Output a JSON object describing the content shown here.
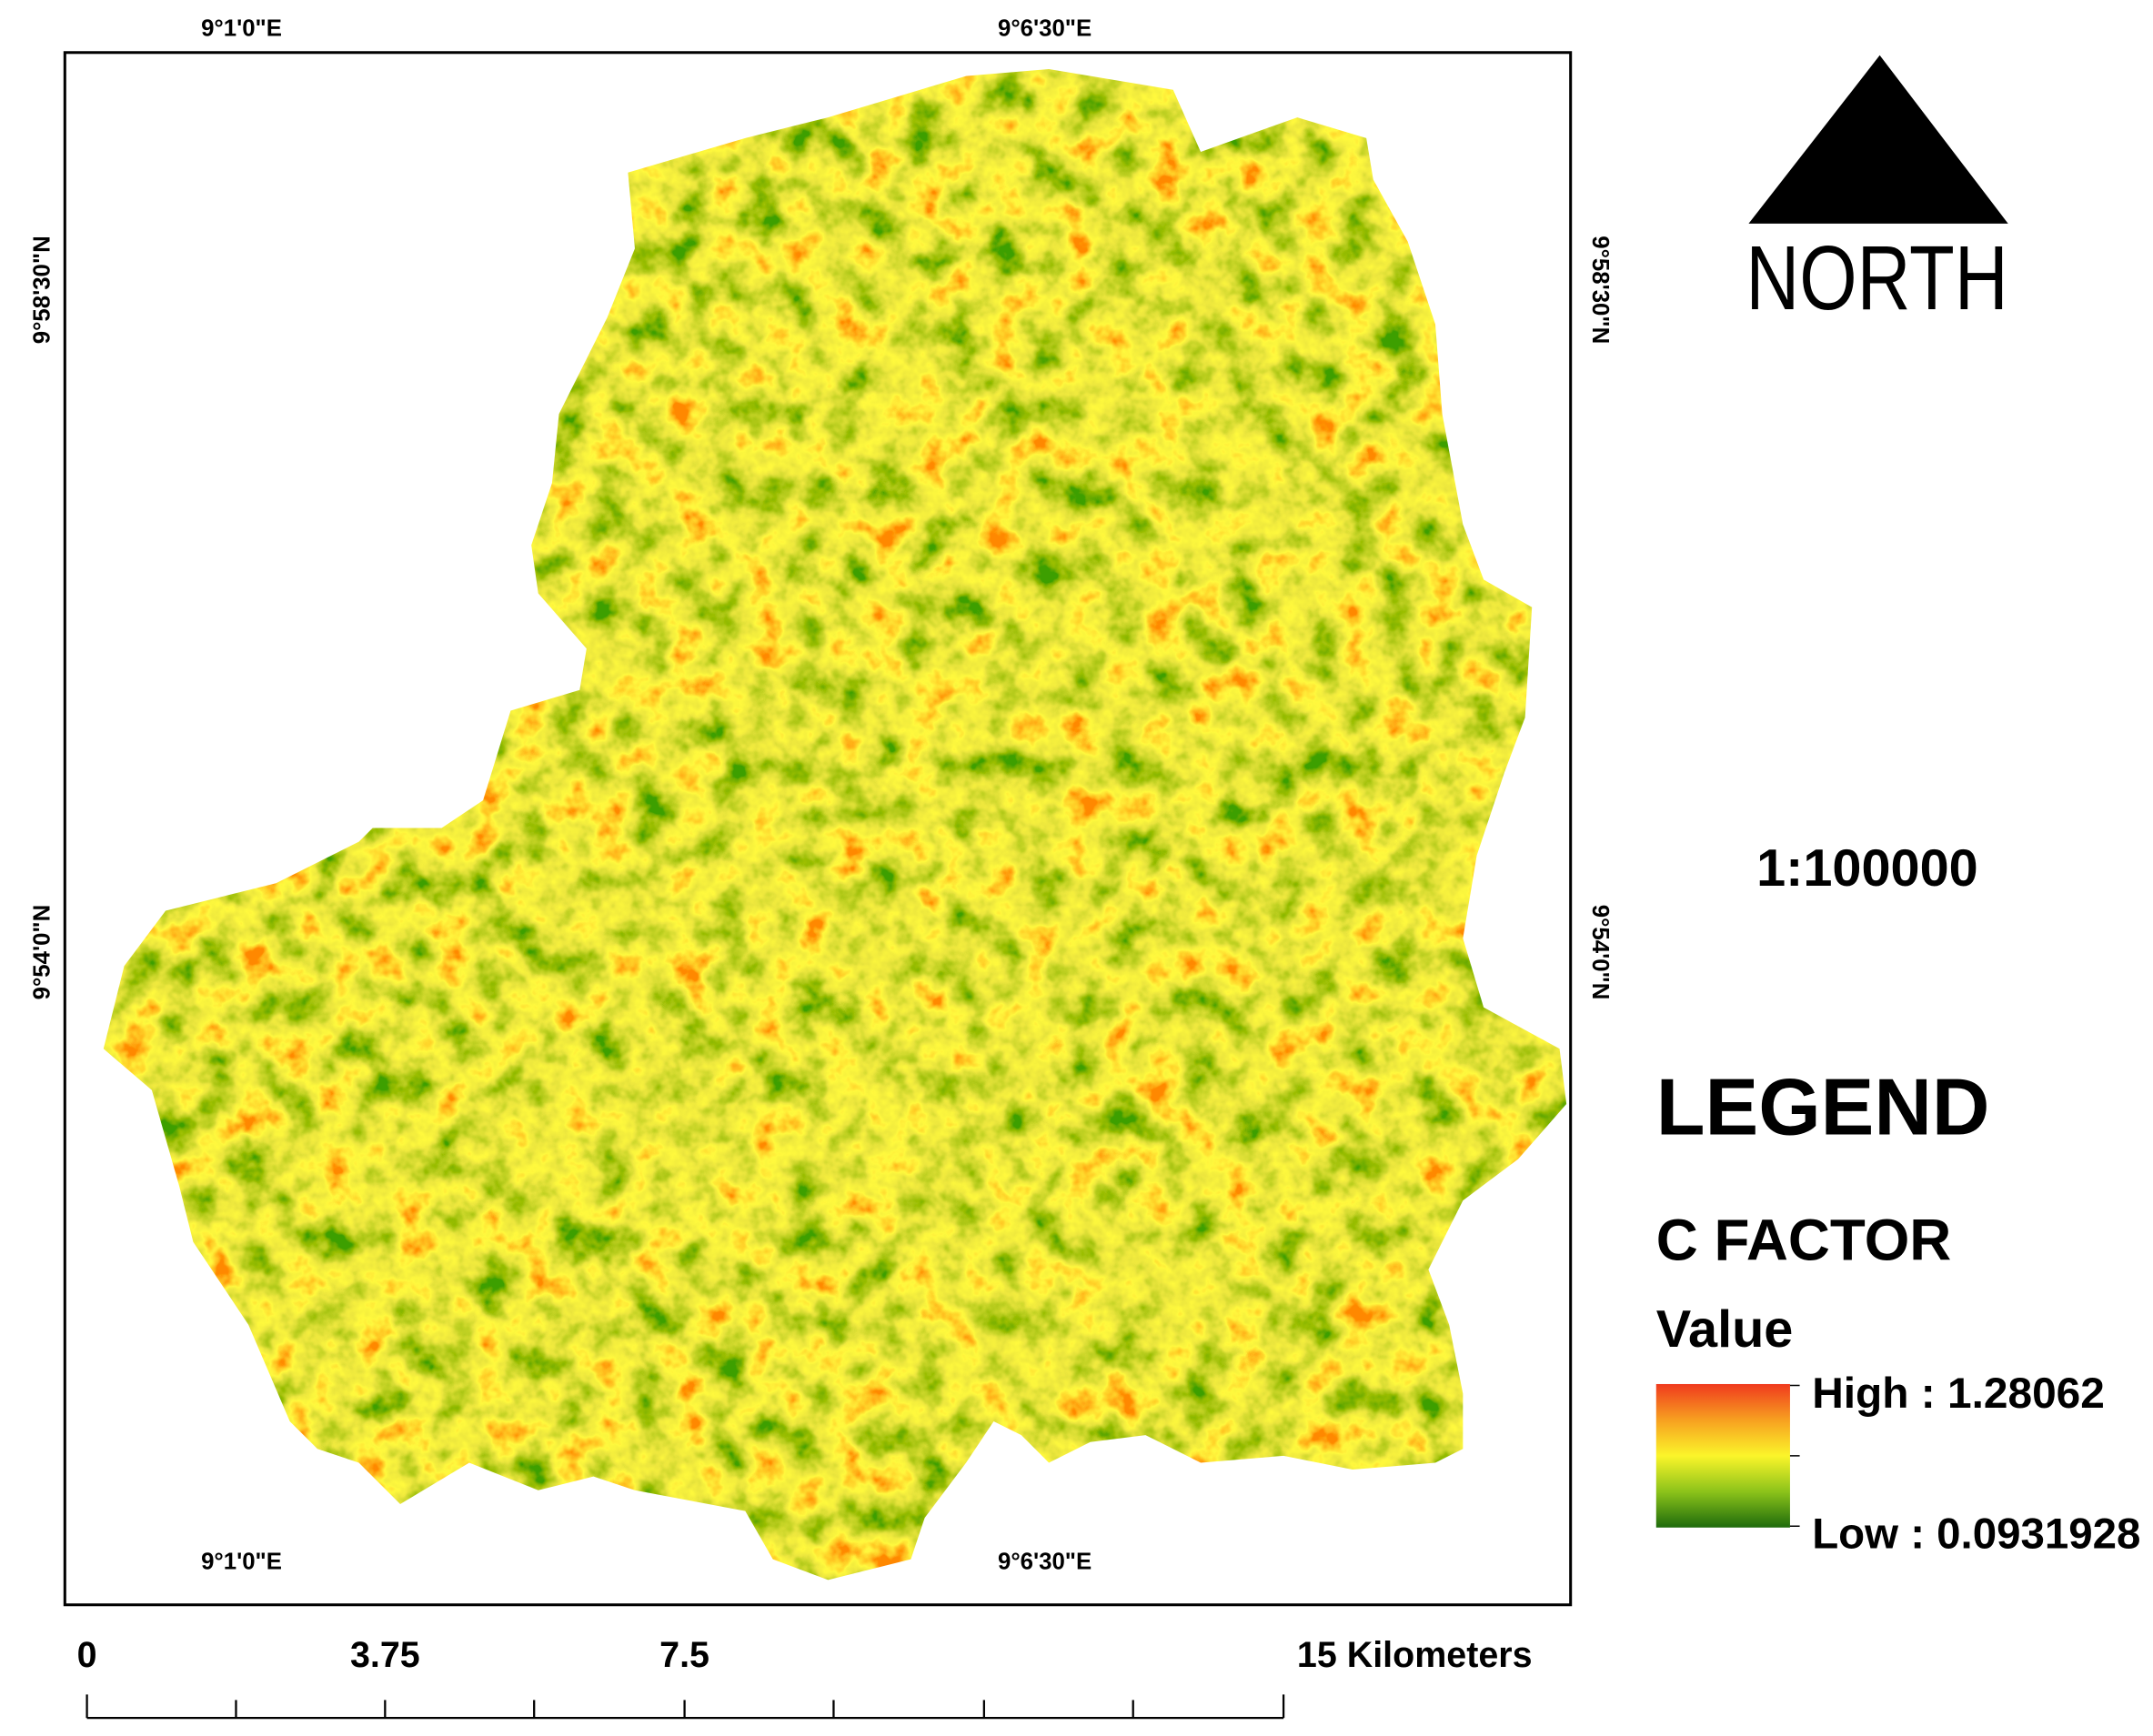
{
  "map": {
    "lon_labels_top": [
      "9°1'0\"E",
      "9°6'30\"E"
    ],
    "lon_labels_bottom": [
      "9°1'0\"E",
      "9°6'30\"E"
    ],
    "lat_labels_left": [
      "9°58'30\"N",
      "9°54'0\"N"
    ],
    "lat_labels_right": [
      "9°58'30\"N",
      "9°54'0\"N"
    ]
  },
  "north_arrow": {
    "label": "NORTH"
  },
  "scale": "1:100000",
  "legend": {
    "title": "LEGEND",
    "layer": "C FACTOR",
    "field": "Value",
    "high": "High : 1.28062",
    "low": "Low : 0.0931928"
  },
  "scale_bar": {
    "labels": [
      "0",
      "3.75",
      "7.5",
      "15 Kilometers"
    ]
  }
}
